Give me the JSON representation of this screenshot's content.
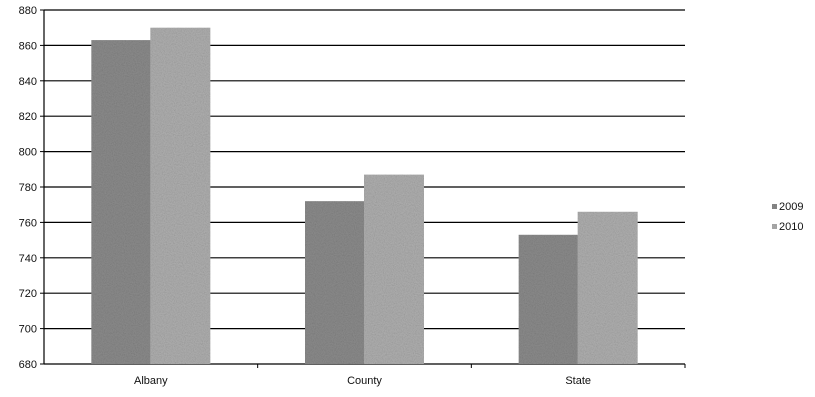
{
  "chart_data": {
    "type": "bar",
    "title": "",
    "xlabel": "",
    "ylabel": "",
    "categories": [
      "Albany",
      "County",
      "State"
    ],
    "series": [
      {
        "name": "2009",
        "values": [
          863,
          772,
          753
        ],
        "color": "#8c8c8c"
      },
      {
        "name": "2010",
        "values": [
          870,
          787,
          766
        ],
        "color": "#b0b0b0"
      }
    ],
    "ylim": [
      680,
      880
    ],
    "yticks": [
      680,
      700,
      720,
      740,
      760,
      780,
      800,
      820,
      840,
      860,
      880
    ],
    "grid": true,
    "legend_position": "right"
  }
}
